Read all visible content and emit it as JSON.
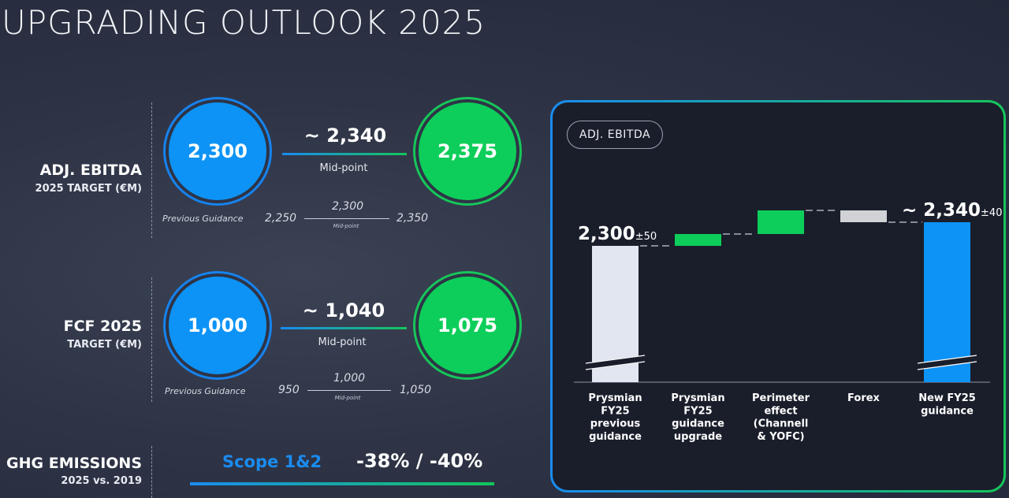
{
  "title": "UPGRADING OUTLOOK 2025",
  "ebitda": {
    "label": "ADJ. EBITDA",
    "sublabel": "2025 TARGET (€M)",
    "low": "2,300",
    "high": "2,375",
    "midpoint": "~ 2,340",
    "midpoint_label": "Mid-point",
    "prev_label": "Previous Guidance",
    "prev_low": "2,250",
    "prev_mid": "2,300",
    "prev_mid_label": "Mid-point",
    "prev_high": "2,350"
  },
  "fcf": {
    "label": "FCF 2025",
    "sublabel": "TARGET (€M)",
    "low": "1,000",
    "high": "1,075",
    "midpoint": "~ 1,040",
    "midpoint_label": "Mid-point",
    "prev_label": "Previous Guidance",
    "prev_low": "950",
    "prev_mid": "1,000",
    "prev_mid_label": "Mid-point",
    "prev_high": "1,050"
  },
  "ghg": {
    "label": "GHG EMISSIONS",
    "sublabel": "2025 vs. 2019",
    "scope": "Scope 1&2",
    "value": "-38% / -40%"
  },
  "colors": {
    "blue": "#0d93f6",
    "green": "#0dce5a",
    "grey": "#d0d2d6",
    "light": "#e2e6f1"
  },
  "chart_data": {
    "type": "waterfall",
    "title": "ADJ. EBITDA",
    "unit": "€M",
    "categories": [
      "Prysmian FY25 previous guidance",
      "Prysmian FY25 guidance upgrade",
      "Perimeter effect (Channell & YOFC)",
      "Forex",
      "New FY25 guidance"
    ],
    "category_lines": [
      [
        "Prysmian",
        "FY25",
        "previous",
        "guidance"
      ],
      [
        "Prysmian",
        "FY25",
        "guidance",
        "upgrade"
      ],
      [
        "Perimeter",
        "effect",
        "(Channell",
        "& YOFC)"
      ],
      [
        "Forex"
      ],
      [
        "New FY25",
        "guidance"
      ]
    ],
    "values": [
      2300,
      20,
      40,
      -20,
      2340
    ],
    "kinds": [
      "total",
      "increase",
      "increase",
      "decrease",
      "total"
    ],
    "labels": [
      {
        "index": 0,
        "main": "2,300",
        "suffix": "±50"
      },
      {
        "index": 4,
        "main": "~ 2,340",
        "suffix": "±40"
      }
    ],
    "axis_break": true,
    "ylim": [
      2200,
      2360
    ]
  }
}
